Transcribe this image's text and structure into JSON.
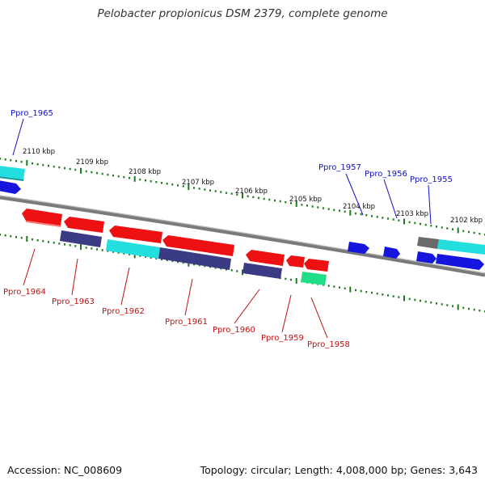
{
  "title": "Pelobacter propionicus DSM 2379, complete genome",
  "footer": {
    "accession": "Accession: NC_008609",
    "summary": "Topology: circular; Length: 4,008,000 bp; Genes: 3,643"
  },
  "scale_labels": [
    "2110 kbp",
    "2109 kbp",
    "2108 kbp",
    "2107 kbp",
    "2106 kbp",
    "2105 kbp",
    "2104 kbp",
    "2103 kbp",
    "2102 kbp"
  ],
  "gene_labels": {
    "top": [
      "Ppro_1965",
      "Ppro_1957",
      "Ppro_1956",
      "Ppro_1955"
    ],
    "bottom": [
      "Ppro_1964",
      "Ppro_1963",
      "Ppro_1962",
      "Ppro_1961",
      "Ppro_1960",
      "Ppro_1959",
      "Ppro_1958"
    ]
  },
  "colors": {
    "backbone": "#7a7a7a",
    "tick": "#1e7a1e",
    "forward_label": "#1010c0",
    "reverse_label": "#c01010",
    "gene_red": "#ee1111",
    "gene_navy": "#3b3b85",
    "gene_cyan": "#22dede",
    "gene_blue": "#1515dd",
    "gene_green": "#22dd88",
    "gene_gray": "#6a6a6a"
  }
}
